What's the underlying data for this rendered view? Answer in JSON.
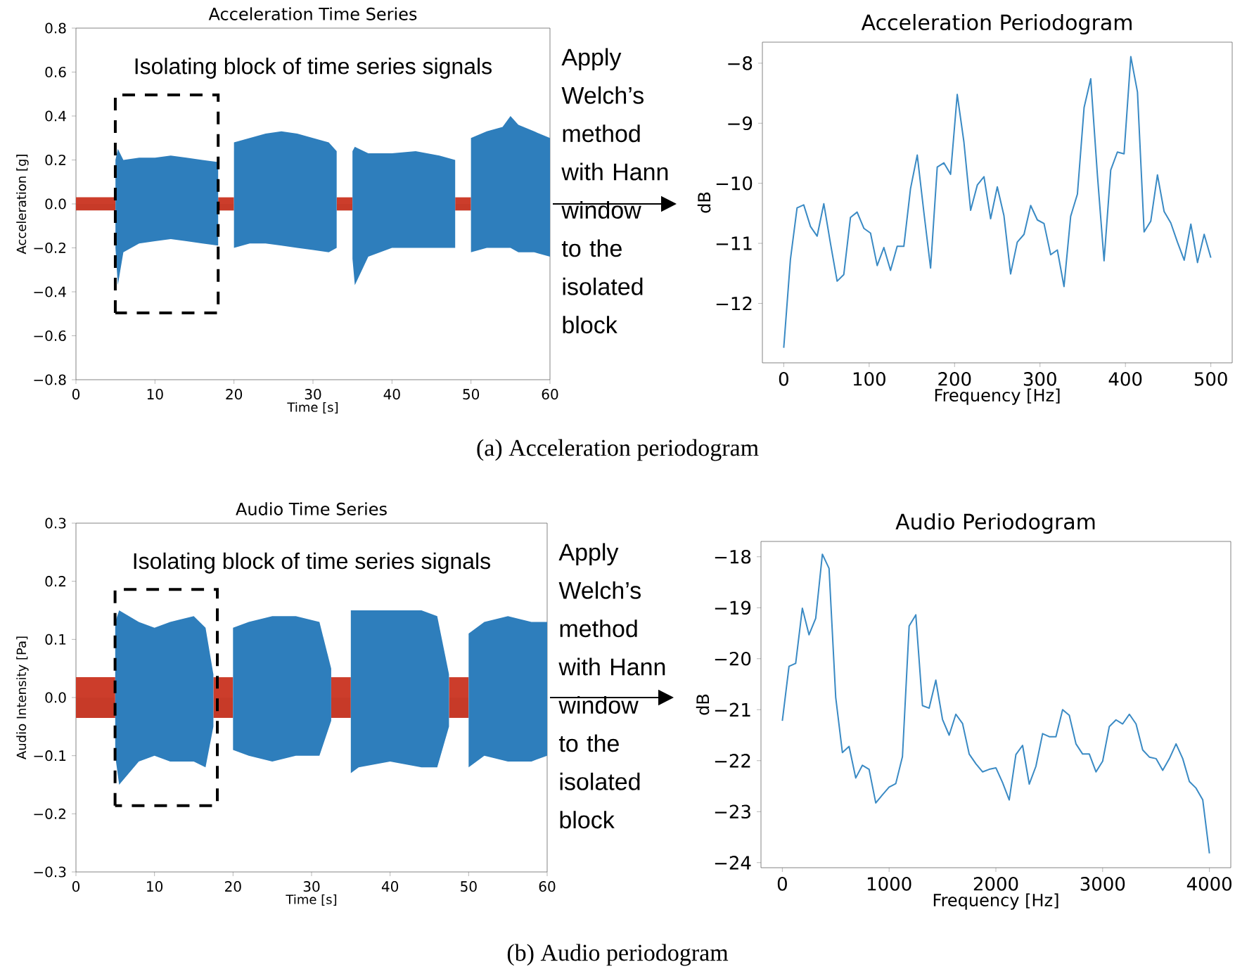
{
  "chart_data": [
    {
      "type": "area",
      "title": "Acceleration Time Series",
      "xlabel": "Time [s]",
      "ylabel": "Acceleration [g]",
      "xlim": [
        0,
        60
      ],
      "xticks": [
        0,
        10,
        20,
        30,
        40,
        50,
        60
      ],
      "ylim": [
        -0.8,
        0.8
      ],
      "yticks": [
        {
          "value": -0.8,
          "label": "−0.8"
        },
        {
          "value": -0.6,
          "label": "−0.6"
        },
        {
          "value": -0.4,
          "label": "−0.4"
        },
        {
          "value": -0.2,
          "label": "−0.2"
        },
        {
          "value": 0,
          "label": "0.0"
        },
        0.2,
        0.4,
        0.6,
        0.8
      ],
      "series": [
        {
          "color": "#cc3d2b",
          "x": [
            0,
            5
          ],
          "values": [
            0.03,
            0.03
          ]
        },
        {
          "color": "#c73a28",
          "x": [
            0,
            5
          ],
          "values": [
            -0.03,
            -0.03
          ]
        },
        {
          "color": "#cc3d2b",
          "x": [
            18,
            20
          ],
          "values": [
            0.03,
            0.03
          ]
        },
        {
          "color": "#c73a28",
          "x": [
            18,
            20
          ],
          "values": [
            -0.03,
            -0.03
          ]
        },
        {
          "color": "#cc3d2b",
          "x": [
            33,
            35
          ],
          "values": [
            0.03,
            0.03
          ]
        },
        {
          "color": "#c73a28",
          "x": [
            33,
            35
          ],
          "values": [
            -0.03,
            -0.03
          ]
        },
        {
          "color": "#cc3d2b",
          "x": [
            48,
            50
          ],
          "values": [
            0.03,
            0.03
          ]
        },
        {
          "color": "#c73a28",
          "x": [
            48,
            50
          ],
          "values": [
            -0.03,
            -0.03
          ]
        },
        {
          "color": "#2e7ebc",
          "x": [
            5,
            5.3,
            6,
            8,
            10,
            12,
            14,
            16,
            18
          ],
          "values": [
            0.2,
            0.25,
            0.2,
            0.21,
            0.21,
            0.22,
            0.21,
            0.2,
            0.19
          ]
        },
        {
          "color": "#2e7ebc",
          "x": [
            5,
            5.3,
            6,
            8,
            10,
            12,
            14,
            16,
            18
          ],
          "values": [
            -0.2,
            -0.37,
            -0.22,
            -0.18,
            -0.17,
            -0.16,
            -0.17,
            -0.18,
            -0.19
          ]
        },
        {
          "color": "#2e7ebc",
          "x": [
            20,
            22,
            24,
            26,
            28,
            30,
            32,
            33
          ],
          "values": [
            0.28,
            0.3,
            0.32,
            0.33,
            0.32,
            0.3,
            0.28,
            0.24
          ]
        },
        {
          "color": "#2e7ebc",
          "x": [
            20,
            22,
            24,
            26,
            28,
            30,
            32,
            33
          ],
          "values": [
            -0.2,
            -0.18,
            -0.18,
            -0.19,
            -0.2,
            -0.21,
            -0.22,
            -0.2
          ]
        },
        {
          "color": "#2e7ebc",
          "x": [
            35,
            35.3,
            37,
            40,
            43,
            46,
            48
          ],
          "values": [
            0.24,
            0.26,
            0.23,
            0.23,
            0.24,
            0.22,
            0.2
          ]
        },
        {
          "color": "#2e7ebc",
          "x": [
            35,
            35.3,
            37,
            40,
            43,
            46,
            48
          ],
          "values": [
            -0.25,
            -0.37,
            -0.24,
            -0.2,
            -0.2,
            -0.2,
            -0.2
          ]
        },
        {
          "color": "#2e7ebc",
          "x": [
            50,
            52,
            54,
            55,
            56,
            58,
            60
          ],
          "values": [
            0.3,
            0.33,
            0.35,
            0.4,
            0.36,
            0.33,
            0.3
          ]
        },
        {
          "color": "#2e7ebc",
          "x": [
            50,
            52,
            54,
            55,
            56,
            58,
            60
          ],
          "values": [
            -0.22,
            -0.2,
            -0.2,
            -0.2,
            -0.22,
            -0.22,
            -0.24
          ]
        }
      ],
      "annotations": [
        "Isolating block of time series signals",
        "Apply Welch’s method with Hann window to the isolated block"
      ]
    },
    {
      "type": "line",
      "title": "Acceleration Periodogram",
      "xlabel": "Frequency [Hz]",
      "ylabel": "dB",
      "xlim": [
        -25,
        525
      ],
      "xticks": [
        0,
        100,
        200,
        300,
        400,
        500
      ],
      "ylim": [
        -12.99,
        -7.65
      ],
      "yticks": [
        {
          "value": -12,
          "label": "−12"
        },
        {
          "value": -11,
          "label": "−11"
        },
        {
          "value": -10,
          "label": "−10"
        },
        {
          "value": -9,
          "label": "−9"
        },
        {
          "value": -8,
          "label": "−8"
        }
      ],
      "x": [
        0,
        7.8,
        15.6,
        23.4,
        31.3,
        39.1,
        46.9,
        54.7,
        62.5,
        70.3,
        78.1,
        85.9,
        93.8,
        101.6,
        109.4,
        117.2,
        125,
        132.8,
        140.6,
        148.4,
        156.3,
        164.1,
        171.9,
        179.7,
        187.5,
        195.3,
        203.1,
        210.9,
        218.8,
        226.6,
        234.4,
        242.2,
        250,
        257.8,
        265.6,
        273.4,
        281.3,
        289.1,
        296.9,
        304.7,
        312.5,
        320.3,
        328.1,
        335.9,
        343.8,
        351.6,
        359.4,
        367.2,
        375,
        382.8,
        390.6,
        398.4,
        406.3,
        414.1,
        421.9,
        429.7,
        437.5,
        445.3,
        453.1,
        460.9,
        468.8,
        476.6,
        484.4,
        492.2,
        500
      ],
      "series": [
        {
          "color": "#3a8ac4",
          "values": [
            -12.74,
            -11.27,
            -10.41,
            -10.36,
            -10.72,
            -10.88,
            -10.34,
            -11.0,
            -11.63,
            -11.52,
            -10.57,
            -10.48,
            -10.75,
            -10.83,
            -11.37,
            -11.07,
            -11.45,
            -11.05,
            -11.05,
            -10.09,
            -9.53,
            -10.49,
            -11.41,
            -9.73,
            -9.66,
            -9.85,
            -8.52,
            -9.31,
            -10.45,
            -10.03,
            -9.89,
            -10.59,
            -10.06,
            -10.54,
            -11.51,
            -10.98,
            -10.85,
            -10.37,
            -10.61,
            -10.67,
            -11.19,
            -11.11,
            -11.72,
            -10.55,
            -10.18,
            -8.74,
            -8.26,
            -9.86,
            -11.29,
            -9.78,
            -9.48,
            -9.51,
            -7.89,
            -8.48,
            -10.81,
            -10.63,
            -9.86,
            -10.47,
            -10.66,
            -10.98,
            -11.28,
            -10.68,
            -11.32,
            -10.85,
            -11.24
          ]
        }
      ],
      "annotations": [
        "(a) Acceleration periodogram"
      ]
    },
    {
      "type": "area",
      "title": "Audio Time Series",
      "xlabel": "Time [s]",
      "ylabel": "Audio Intensity [Pa]",
      "xlim": [
        0,
        60
      ],
      "xticks": [
        0,
        10,
        20,
        30,
        40,
        50,
        60
      ],
      "ylim": [
        -0.3,
        0.3
      ],
      "yticks": [
        {
          "value": -0.3,
          "label": "−0.3"
        },
        {
          "value": -0.2,
          "label": "−0.2"
        },
        {
          "value": -0.1,
          "label": "−0.1"
        },
        {
          "value": 0,
          "label": "0.0"
        },
        0.1,
        0.2,
        0.3
      ],
      "series": [
        {
          "color": "#cc3d2b",
          "x": [
            0,
            5
          ],
          "values": [
            0.035,
            0.035
          ]
        },
        {
          "color": "#c73a28",
          "x": [
            0,
            5
          ],
          "values": [
            -0.035,
            -0.035
          ]
        },
        {
          "color": "#cc3d2b",
          "x": [
            17.5,
            20
          ],
          "values": [
            0.035,
            0.035
          ]
        },
        {
          "color": "#c73a28",
          "x": [
            17.5,
            20
          ],
          "values": [
            -0.035,
            -0.035
          ]
        },
        {
          "color": "#cc3d2b",
          "x": [
            32.5,
            35
          ],
          "values": [
            0.035,
            0.035
          ]
        },
        {
          "color": "#c73a28",
          "x": [
            32.5,
            35
          ],
          "values": [
            -0.035,
            -0.035
          ]
        },
        {
          "color": "#cc3d2b",
          "x": [
            47.5,
            50
          ],
          "values": [
            0.035,
            0.035
          ]
        },
        {
          "color": "#c73a28",
          "x": [
            47.5,
            50
          ],
          "values": [
            -0.035,
            -0.035
          ]
        },
        {
          "color": "#2e7ebc",
          "x": [
            5,
            5.5,
            8,
            10,
            12,
            15,
            16.5,
            17.5
          ],
          "values": [
            0.13,
            0.15,
            0.13,
            0.12,
            0.13,
            0.14,
            0.12,
            0.04
          ]
        },
        {
          "color": "#2e7ebc",
          "x": [
            5,
            5.5,
            8,
            10,
            12,
            15,
            16.5,
            17.5
          ],
          "values": [
            -0.1,
            -0.15,
            -0.11,
            -0.1,
            -0.11,
            -0.11,
            -0.12,
            -0.05
          ]
        },
        {
          "color": "#2e7ebc",
          "x": [
            20,
            22,
            25,
            28,
            31,
            32.5
          ],
          "values": [
            0.12,
            0.13,
            0.14,
            0.14,
            0.13,
            0.05
          ]
        },
        {
          "color": "#2e7ebc",
          "x": [
            20,
            22,
            25,
            28,
            31,
            32.5
          ],
          "values": [
            -0.09,
            -0.1,
            -0.11,
            -0.1,
            -0.1,
            -0.04
          ]
        },
        {
          "color": "#2e7ebc",
          "x": [
            35,
            36,
            40,
            44,
            46,
            47.5
          ],
          "values": [
            0.15,
            0.15,
            0.15,
            0.15,
            0.14,
            0.04
          ]
        },
        {
          "color": "#2e7ebc",
          "x": [
            35,
            36,
            40,
            44,
            46,
            47.5
          ],
          "values": [
            -0.13,
            -0.12,
            -0.11,
            -0.12,
            -0.12,
            -0.05
          ]
        },
        {
          "color": "#2e7ebc",
          "x": [
            50,
            52,
            55,
            58,
            60
          ],
          "values": [
            0.11,
            0.13,
            0.14,
            0.13,
            0.13
          ]
        },
        {
          "color": "#2e7ebc",
          "x": [
            50,
            52,
            55,
            58,
            60
          ],
          "values": [
            -0.12,
            -0.1,
            -0.11,
            -0.11,
            -0.1
          ]
        }
      ],
      "annotations": [
        "Isolating block of time series signals",
        "Apply Welch’s method with Hann window to the isolated block"
      ]
    },
    {
      "type": "line",
      "title": "Audio Periodogram",
      "xlabel": "Frequency [Hz]",
      "ylabel": "dB",
      "xlim": [
        -200,
        4200
      ],
      "xticks": [
        0,
        1000,
        2000,
        3000,
        4000
      ],
      "ylim": [
        -24.1,
        -17.7
      ],
      "yticks": [
        {
          "value": -24,
          "label": "−24"
        },
        {
          "value": -23,
          "label": "−23"
        },
        {
          "value": -22,
          "label": "−22"
        },
        {
          "value": -21,
          "label": "−21"
        },
        {
          "value": -20,
          "label": "−20"
        },
        {
          "value": -19,
          "label": "−19"
        },
        {
          "value": -18,
          "label": "−18"
        }
      ],
      "x": [
        0,
        62.5,
        125,
        187.5,
        250,
        312.5,
        375,
        437.5,
        500,
        562.5,
        625,
        687.5,
        750,
        812.5,
        875,
        937.5,
        1000,
        1062.5,
        1125,
        1187.5,
        1250,
        1312.5,
        1375,
        1437.5,
        1500,
        1562.5,
        1625,
        1687.5,
        1750,
        1812.5,
        1875,
        1937.5,
        2000,
        2062.5,
        2125,
        2187.5,
        2250,
        2312.5,
        2375,
        2437.5,
        2500,
        2562.5,
        2625,
        2687.5,
        2750,
        2812.5,
        2875,
        2937.5,
        3000,
        3062.5,
        3125,
        3187.5,
        3250,
        3312.5,
        3375,
        3437.5,
        3500,
        3562.5,
        3625,
        3687.5,
        3750,
        3812.5,
        3875,
        3937.5,
        4000
      ],
      "series": [
        {
          "color": "#3a8ac4",
          "values": [
            -21.22,
            -20.15,
            -20.09,
            -19.01,
            -19.53,
            -19.21,
            -17.95,
            -18.23,
            -20.76,
            -21.84,
            -21.72,
            -22.34,
            -22.09,
            -22.17,
            -22.83,
            -22.67,
            -22.52,
            -22.45,
            -21.92,
            -19.36,
            -19.14,
            -20.92,
            -20.97,
            -20.42,
            -21.19,
            -21.5,
            -21.09,
            -21.27,
            -21.87,
            -22.06,
            -22.22,
            -22.17,
            -22.14,
            -22.43,
            -22.77,
            -21.88,
            -21.7,
            -22.46,
            -22.11,
            -21.47,
            -21.53,
            -21.53,
            -21.0,
            -21.11,
            -21.67,
            -21.87,
            -21.87,
            -22.22,
            -22.01,
            -21.33,
            -21.2,
            -21.28,
            -21.09,
            -21.28,
            -21.79,
            -21.93,
            -21.96,
            -22.19,
            -21.96,
            -21.67,
            -21.96,
            -22.41,
            -22.54,
            -22.77,
            -23.82
          ]
        }
      ],
      "annotations": [
        "(b) Audio periodogram"
      ]
    }
  ]
}
